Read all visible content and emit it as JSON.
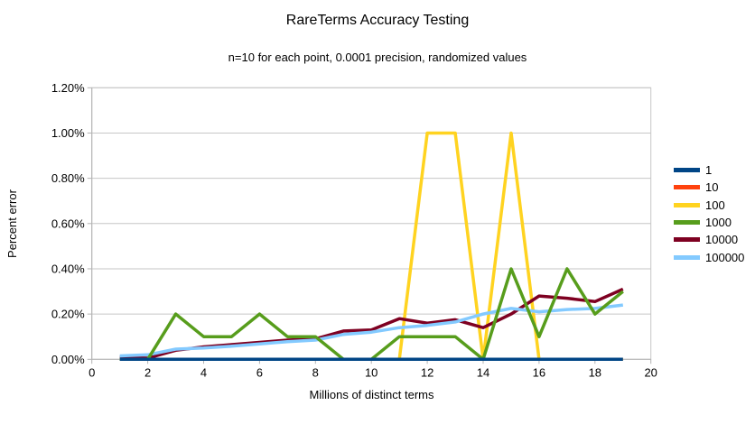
{
  "chart_data": {
    "type": "line",
    "title": "RareTerms Accuracy Testing",
    "subtitle": "n=10 for each point, 0.0001 precision, randomized values",
    "xlabel": "Millions of distinct terms",
    "ylabel": "Percent error",
    "xlim": [
      0,
      20
    ],
    "ylim_percent": [
      0,
      1.2
    ],
    "grid": "horizontal",
    "legend_position": "right",
    "x_ticks": [
      0,
      2,
      4,
      6,
      8,
      10,
      12,
      14,
      16,
      18,
      20
    ],
    "y_ticks": [
      {
        "value": 0.0,
        "label": "0.00%"
      },
      {
        "value": 0.2,
        "label": "0.20%"
      },
      {
        "value": 0.4,
        "label": "0.40%"
      },
      {
        "value": 0.6,
        "label": "0.60%"
      },
      {
        "value": 0.8,
        "label": "0.80%"
      },
      {
        "value": 1.0,
        "label": "1.00%"
      },
      {
        "value": 1.2,
        "label": "1.20%"
      }
    ],
    "x": [
      1,
      2,
      3,
      4,
      5,
      6,
      7,
      8,
      9,
      10,
      11,
      12,
      13,
      14,
      15,
      16,
      17,
      18,
      19
    ],
    "series": [
      {
        "name": "1",
        "color": "#004586",
        "values_percent": [
          0,
          0,
          0,
          0,
          0,
          0,
          0,
          0,
          0,
          0,
          0,
          0,
          0,
          0,
          0,
          0,
          0,
          0,
          0
        ]
      },
      {
        "name": "10",
        "color": "#FF420E",
        "values_percent": [
          0,
          0,
          0,
          0,
          0,
          0,
          0,
          0,
          0,
          0,
          0,
          0,
          0,
          0,
          0,
          0,
          0,
          0,
          0
        ]
      },
      {
        "name": "100",
        "color": "#FFD320",
        "values_percent": [
          0,
          0,
          0,
          0,
          0,
          0,
          0,
          0,
          0,
          0,
          0,
          1.0,
          1.0,
          0,
          1.0,
          0,
          0,
          0,
          0
        ]
      },
      {
        "name": "1000",
        "color": "#579D1C",
        "values_percent": [
          0,
          0,
          0.2,
          0.1,
          0.1,
          0.2,
          0.1,
          0.1,
          0,
          0,
          0.1,
          0.1,
          0.1,
          0,
          0.4,
          0.1,
          0.4,
          0.2,
          0.3
        ]
      },
      {
        "name": "10000",
        "color": "#7E0021",
        "values_percent": [
          0.01,
          0.005,
          0.04,
          0.055,
          0.065,
          0.075,
          0.085,
          0.09,
          0.125,
          0.13,
          0.18,
          0.16,
          0.175,
          0.14,
          0.2,
          0.28,
          0.27,
          0.255,
          0.31
        ]
      },
      {
        "name": "100000",
        "color": "#83CAFF",
        "values_percent": [
          0.015,
          0.02,
          0.045,
          0.05,
          0.058,
          0.068,
          0.078,
          0.085,
          0.11,
          0.12,
          0.14,
          0.15,
          0.165,
          0.2,
          0.225,
          0.21,
          0.22,
          0.225,
          0.24
        ]
      }
    ],
    "draw_order": [
      "10",
      "100",
      "10000",
      "100000",
      "1000",
      "1"
    ],
    "colors": {
      "grid": "#c6c6c6",
      "axis": "#b3b3b3",
      "text": "#000000"
    }
  }
}
